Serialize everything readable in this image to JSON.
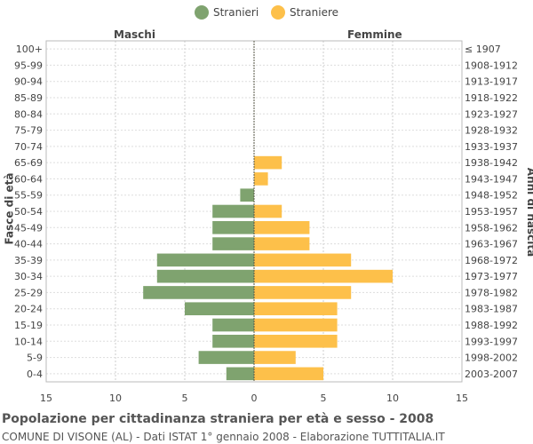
{
  "chart_data": {
    "type": "bar",
    "orientation": "horizontal-population-pyramid",
    "title": "Popolazione per cittadinanza straniera per età e sesso - 2008",
    "subtitle": "COMUNE DI VISONE (AL) - Dati ISTAT 1° gennaio 2008 - Elaborazione TUTTITALIA.IT",
    "left_header": "Maschi",
    "right_header": "Femmine",
    "ylabel_left": "Fasce di età",
    "ylabel_right": "Anni di nascita",
    "xlim": [
      -15,
      15
    ],
    "xticks": [
      "15",
      "10",
      "5",
      "0",
      "5",
      "10",
      "15"
    ],
    "categories": [
      "100+",
      "95-99",
      "90-94",
      "85-89",
      "80-84",
      "75-79",
      "70-74",
      "65-69",
      "60-64",
      "55-59",
      "50-54",
      "45-49",
      "40-44",
      "35-39",
      "30-34",
      "25-29",
      "20-24",
      "15-19",
      "10-14",
      "5-9",
      "0-4"
    ],
    "birth_years": [
      "≤ 1907",
      "1908-1912",
      "1913-1917",
      "1918-1922",
      "1923-1927",
      "1928-1932",
      "1933-1937",
      "1938-1942",
      "1943-1947",
      "1948-1952",
      "1953-1957",
      "1958-1962",
      "1963-1967",
      "1968-1972",
      "1973-1977",
      "1978-1982",
      "1983-1987",
      "1988-1992",
      "1993-1997",
      "1998-2002",
      "2003-2007"
    ],
    "series": [
      {
        "name": "Stranieri",
        "color": "#7fa36f",
        "values": [
          0,
          0,
          0,
          0,
          0,
          0,
          0,
          0,
          0,
          1,
          3,
          3,
          3,
          7,
          7,
          8,
          5,
          3,
          3,
          4,
          2
        ]
      },
      {
        "name": "Straniere",
        "color": "#fdc04a",
        "values": [
          0,
          0,
          0,
          0,
          0,
          0,
          0,
          2,
          1,
          0,
          2,
          4,
          4,
          7,
          10,
          7,
          6,
          6,
          6,
          3,
          5
        ]
      }
    ],
    "grid": true,
    "legend_position": "top-center"
  }
}
